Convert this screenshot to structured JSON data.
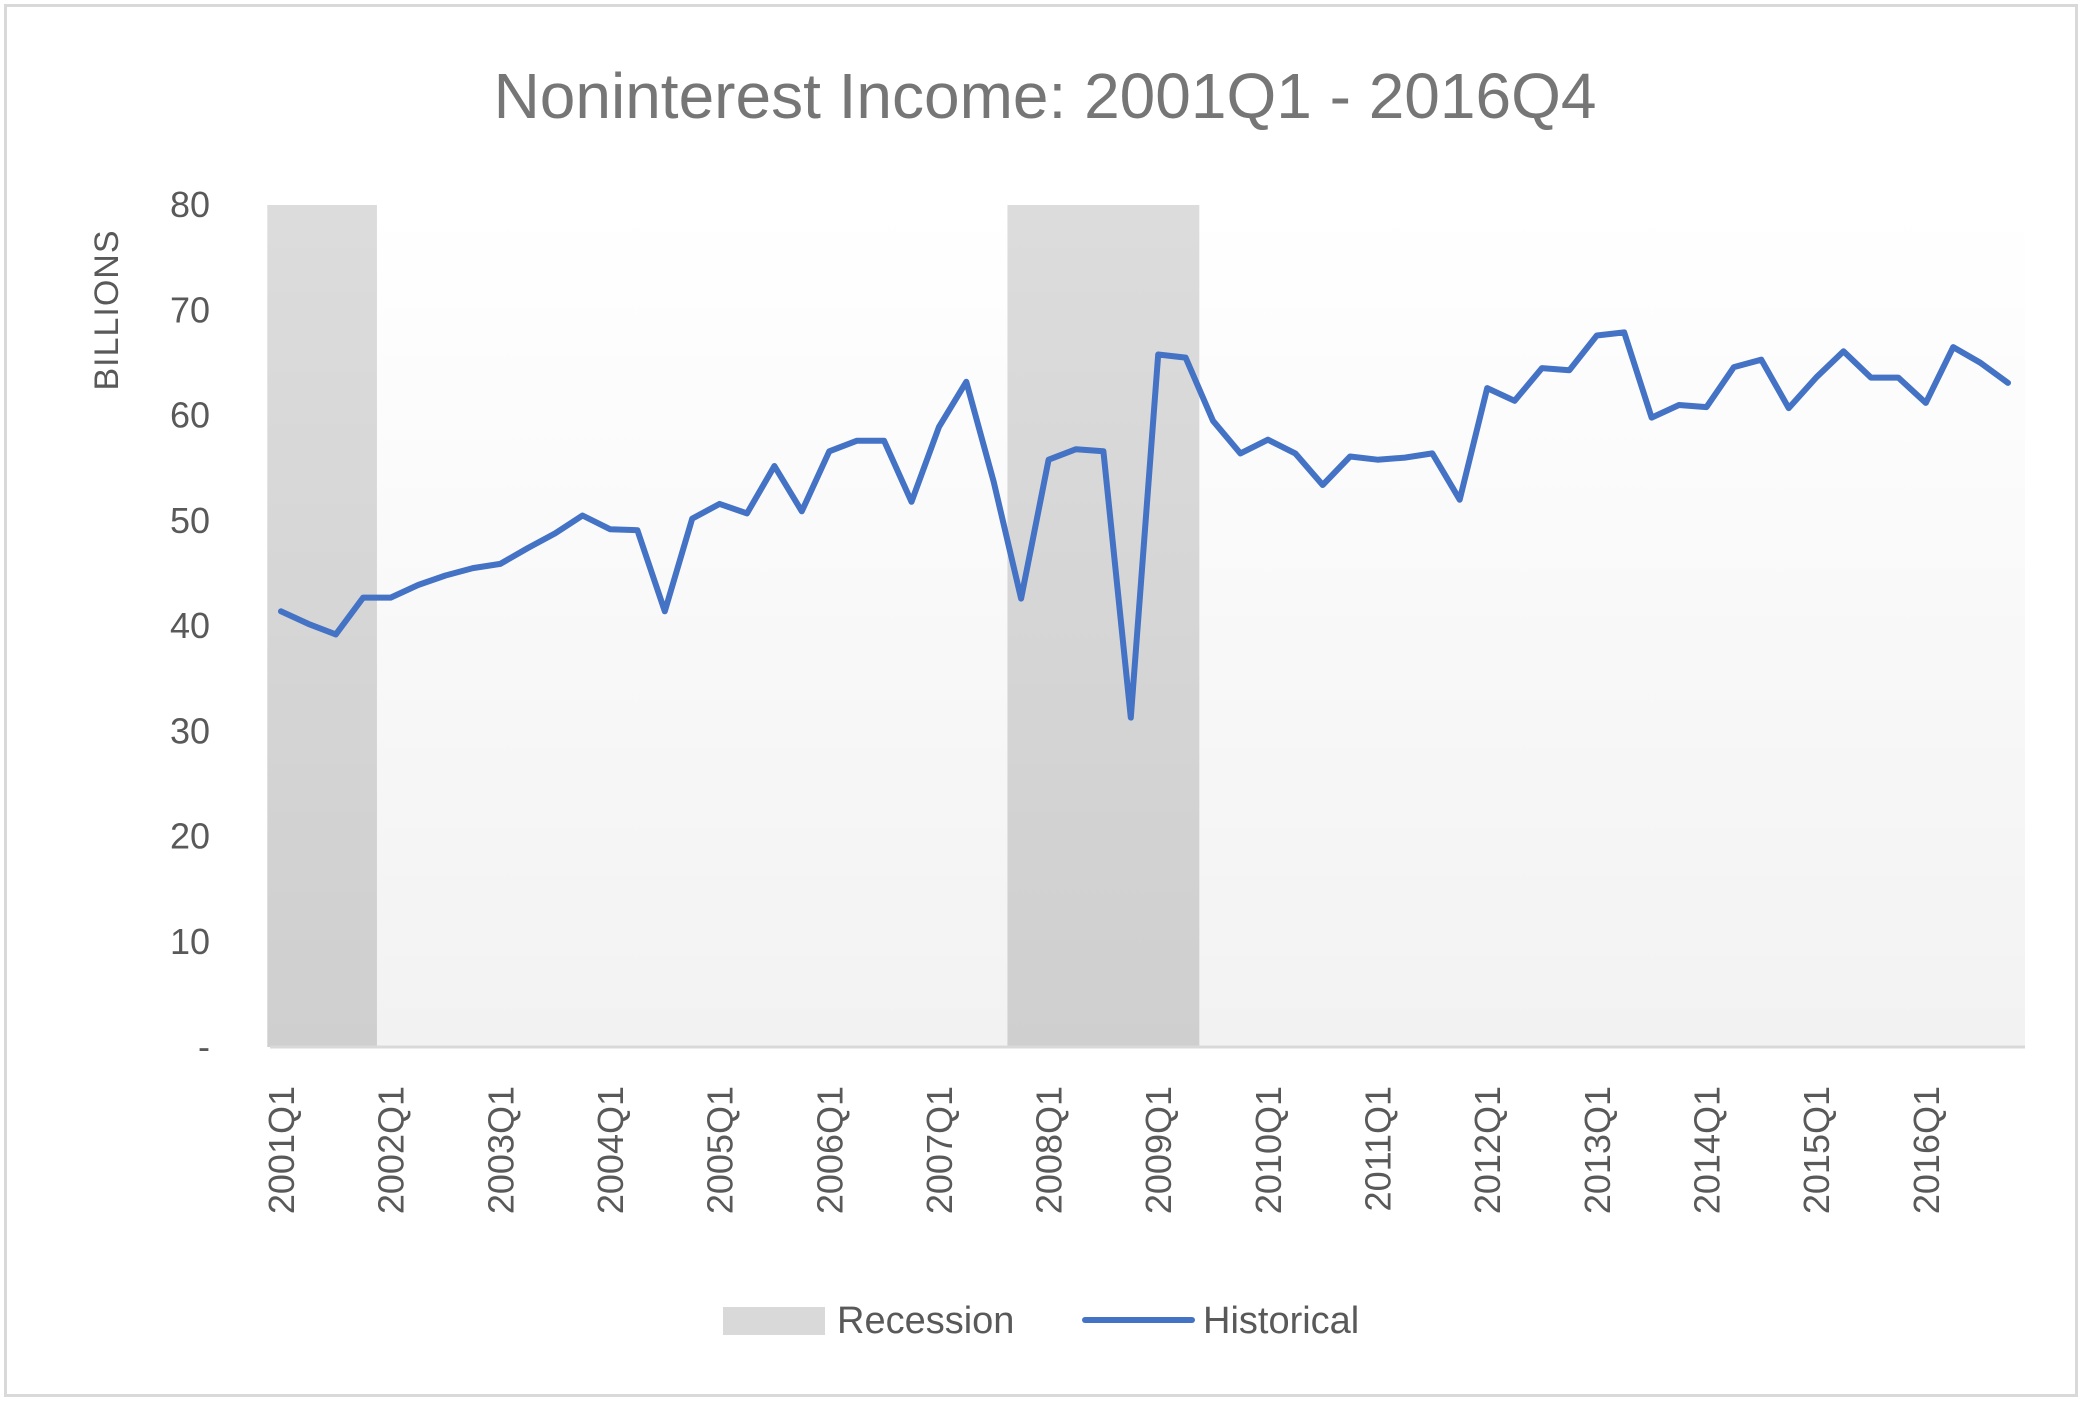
{
  "chart_data": {
    "type": "line",
    "title": "Noninterest Income: 2001Q1 - 2016Q4",
    "ylabel": "BILLIONS",
    "xlabel": "",
    "ylim": [
      0,
      80
    ],
    "yticks": [
      "-",
      "10",
      "20",
      "30",
      "40",
      "50",
      "60",
      "70",
      "80"
    ],
    "x_tick_labels": [
      "2001Q1",
      "2002Q1",
      "2003Q1",
      "2004Q1",
      "2005Q1",
      "2006Q1",
      "2007Q1",
      "2008Q1",
      "2009Q1",
      "2010Q1",
      "2011Q1",
      "2012Q1",
      "2013Q1",
      "2014Q1",
      "2015Q1",
      "2016Q1"
    ],
    "legend": {
      "placement": "bottom",
      "entries": [
        "Recession",
        "Historical"
      ]
    },
    "colors": {
      "historical": "#4472c4",
      "recession": "#d9d9d9",
      "title": "#767676",
      "axis_text": "#595959"
    },
    "recessions": [
      {
        "name": "Recession",
        "start": "2001Q1",
        "end": "2001Q4"
      },
      {
        "name": "Recession",
        "start": "2007Q4",
        "end": "2009Q2"
      }
    ],
    "series": [
      {
        "name": "Historical",
        "x": [
          "2001Q1",
          "2001Q2",
          "2001Q3",
          "2001Q4",
          "2002Q1",
          "2002Q2",
          "2002Q3",
          "2002Q4",
          "2003Q1",
          "2003Q2",
          "2003Q3",
          "2003Q4",
          "2004Q1",
          "2004Q2",
          "2004Q3",
          "2004Q4",
          "2005Q1",
          "2005Q2",
          "2005Q3",
          "2005Q4",
          "2006Q1",
          "2006Q2",
          "2006Q3",
          "2006Q4",
          "2007Q1",
          "2007Q2",
          "2007Q3",
          "2007Q4",
          "2008Q1",
          "2008Q2",
          "2008Q3",
          "2008Q4",
          "2009Q1",
          "2009Q2",
          "2009Q3",
          "2009Q4",
          "2010Q1",
          "2010Q2",
          "2010Q3",
          "2010Q4",
          "2011Q1",
          "2011Q2",
          "2011Q3",
          "2011Q4",
          "2012Q1",
          "2012Q2",
          "2012Q3",
          "2012Q4",
          "2013Q1",
          "2013Q2",
          "2013Q3",
          "2013Q4",
          "2014Q1",
          "2014Q2",
          "2014Q3",
          "2014Q4",
          "2015Q1",
          "2015Q2",
          "2015Q3",
          "2015Q4",
          "2016Q1",
          "2016Q2",
          "2016Q3",
          "2016Q4"
        ],
        "values": [
          41.4,
          40.2,
          39.2,
          42.7,
          42.7,
          43.9,
          44.8,
          45.5,
          45.9,
          47.4,
          48.8,
          50.5,
          49.2,
          49.1,
          41.4,
          50.2,
          51.6,
          50.7,
          55.2,
          50.9,
          56.6,
          57.6,
          57.6,
          51.8,
          58.9,
          63.2,
          53.7,
          42.6,
          55.8,
          56.8,
          56.6,
          31.3,
          65.8,
          65.5,
          59.5,
          56.4,
          57.7,
          56.4,
          53.4,
          56.1,
          55.8,
          56.0,
          56.4,
          52.0,
          62.6,
          61.4,
          64.5,
          64.3,
          67.6,
          67.9,
          59.8,
          61.0,
          60.8,
          64.6,
          65.3,
          60.7,
          63.6,
          66.1,
          63.6,
          63.6,
          61.2,
          66.5,
          65.0,
          63.1
        ]
      }
    ]
  }
}
